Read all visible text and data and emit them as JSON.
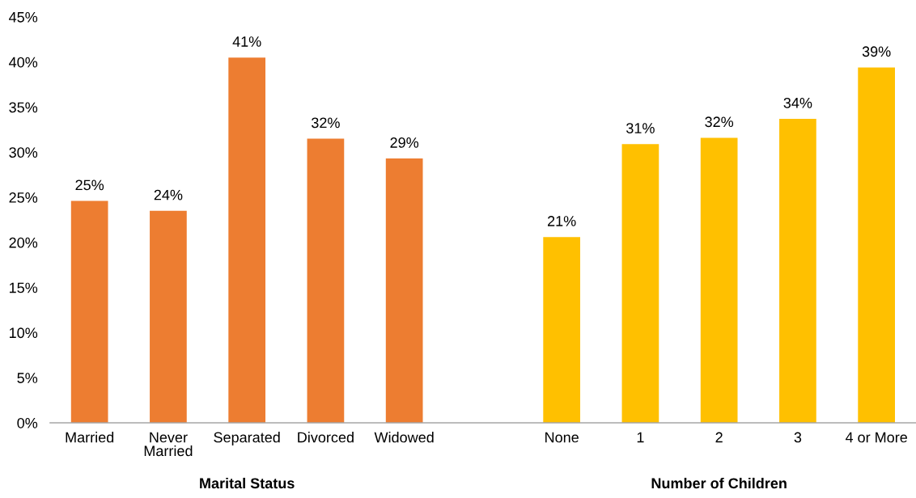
{
  "chart_data": {
    "type": "bar",
    "categories": [
      "Married",
      "Never Married",
      "Separated",
      "Divorced",
      "Widowed",
      null,
      "None",
      "1",
      "2",
      "3",
      "4 or More"
    ],
    "values": [
      24.6,
      23.5,
      40.5,
      31.5,
      29.3,
      null,
      20.6,
      30.9,
      31.6,
      33.7,
      39.4
    ],
    "colors": [
      "#ed7d31",
      "#ed7d31",
      "#ed7d31",
      "#ed7d31",
      "#ed7d31",
      null,
      "#ffc000",
      "#ffc000",
      "#ffc000",
      "#ffc000",
      "#ffc000"
    ],
    "value_labels": [
      "25%",
      "24%",
      "41%",
      "32%",
      "29%",
      null,
      "21%",
      "31%",
      "32%",
      "34%",
      "39%"
    ],
    "ylim": [
      0,
      45
    ],
    "yticks": [
      {
        "value": 0,
        "label": "0%"
      },
      {
        "value": 5,
        "label": "5%"
      },
      {
        "value": 10,
        "label": "10%"
      },
      {
        "value": 15,
        "label": "15%"
      },
      {
        "value": 20,
        "label": "20%"
      },
      {
        "value": 25,
        "label": "25%"
      },
      {
        "value": 30,
        "label": "30%"
      },
      {
        "value": 35,
        "label": "35%"
      },
      {
        "value": 40,
        "label": "40%"
      },
      {
        "value": 45,
        "label": "45%"
      }
    ],
    "annotations": [
      "Marital Status",
      "Number of Children"
    ]
  }
}
